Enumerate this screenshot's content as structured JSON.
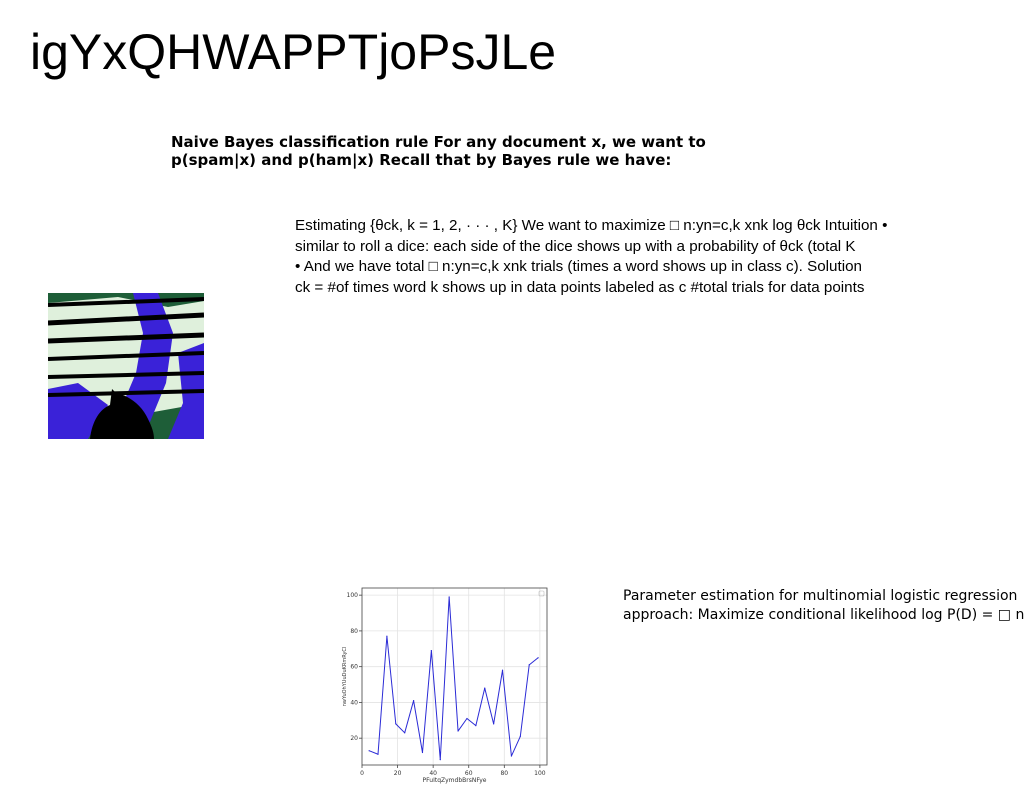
{
  "title": "igYxQHWAPPTjoPsJLe",
  "bayes": {
    "lines": [
      "Naive Bayes classification rule For any document x, we want to",
      "p(spam|x) and p(ham|x) Recall that by Bayes rule we have:"
    ]
  },
  "estimating": {
    "lines": [
      "Estimating {θck, k = 1, 2, · · · , K} We want to maximize □ n:yn=c,k xnk log θck Intuition •",
      "similar to roll a dice: each side of the dice shows up with a probability of θck (total K",
      "• And we have total □ n:yn=c,k xnk trials (times a word shows up in class c). Solution",
      "ck = #of times word k shows up in data points labeled as c #total trials for data points"
    ]
  },
  "photo": {
    "colors": {
      "green": "#1e5e38",
      "pale": "#dff0dc",
      "blue": "#3a22d8",
      "dark": "#000000"
    }
  },
  "param": {
    "lines": [
      "Parameter estimation for multinomial logistic regression",
      "approach: Maximize conditional likelihood log P(D) = □ n"
    ]
  },
  "chart_data": {
    "type": "line",
    "x": [
      4,
      9,
      14,
      19,
      24,
      29,
      34,
      39,
      44,
      49,
      54,
      59,
      64,
      69,
      74,
      79,
      84,
      89,
      94,
      99
    ],
    "series": [
      {
        "values": [
          13,
          11,
          77,
          28,
          23,
          41,
          12,
          69,
          8,
          99,
          24,
          31,
          27,
          48,
          28,
          58,
          10,
          21,
          61,
          65
        ],
        "color": "#2b2bd6"
      }
    ],
    "xlabel": "PFuItqZymdbBrsNFye",
    "ylabel": "nwYuOhYUuDuKRmRyCl",
    "xlim": [
      0,
      104
    ],
    "ylim": [
      5,
      104
    ],
    "xticks": [
      0,
      20,
      40,
      60,
      80,
      100
    ],
    "yticks": [
      20,
      40,
      60,
      80,
      100
    ],
    "grid": true,
    "legend": "top-right"
  }
}
